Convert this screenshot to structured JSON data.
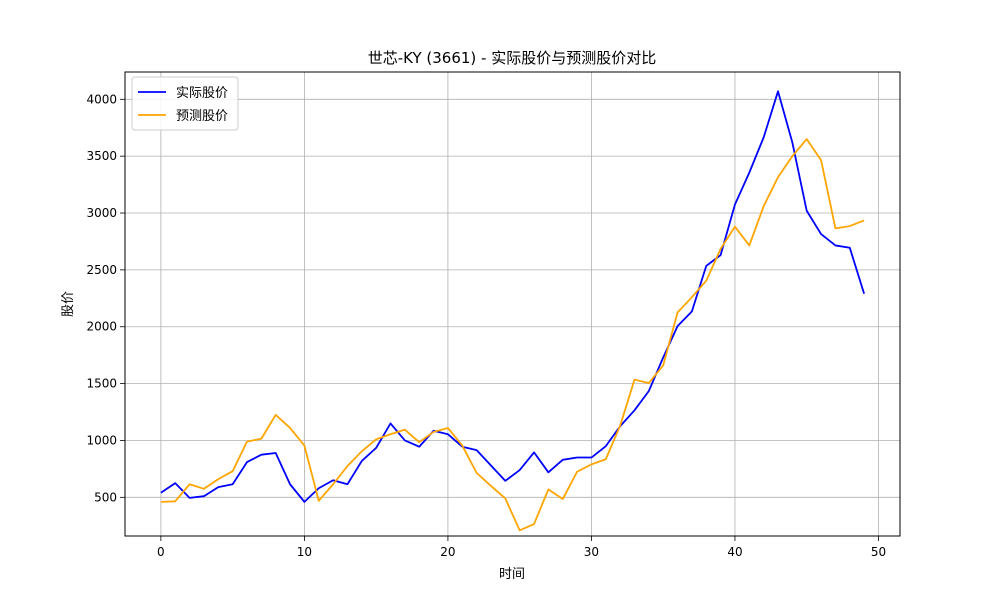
{
  "chart_data": {
    "type": "line",
    "title": "世芯-KY (3661) - 实际股价与预测股价对比",
    "xlabel": "时间",
    "ylabel": "股价",
    "xlim": [
      -2.5,
      51.5
    ],
    "ylim": [
      160,
      4240
    ],
    "xticks": [
      0,
      10,
      20,
      30,
      40,
      50
    ],
    "yticks": [
      500,
      1000,
      1500,
      2000,
      2500,
      3000,
      3500,
      4000
    ],
    "grid": true,
    "legend_position": "top-left",
    "x": [
      0,
      1,
      2,
      3,
      4,
      5,
      6,
      7,
      8,
      9,
      10,
      11,
      12,
      13,
      14,
      15,
      16,
      17,
      18,
      19,
      20,
      21,
      22,
      23,
      24,
      25,
      26,
      27,
      28,
      29,
      30,
      31,
      32,
      33,
      34,
      35,
      36,
      37,
      38,
      39,
      40,
      41,
      42,
      43,
      44,
      45,
      46,
      47,
      48,
      49
    ],
    "series": [
      {
        "name": "实际股价",
        "color": "#0000ff",
        "values": [
          540,
          625,
          495,
          510,
          590,
          615,
          810,
          875,
          890,
          615,
          460,
          580,
          650,
          615,
          820,
          935,
          1150,
          1000,
          945,
          1085,
          1055,
          945,
          915,
          780,
          645,
          740,
          895,
          720,
          830,
          850,
          850,
          950,
          1125,
          1265,
          1435,
          1730,
          2005,
          2135,
          2535,
          2630,
          3075,
          3355,
          3665,
          4070,
          3620,
          3020,
          2815,
          2715,
          2695,
          2290
        ]
      },
      {
        "name": "预测股价",
        "color": "#ffa500",
        "values": [
          460,
          465,
          615,
          575,
          660,
          730,
          990,
          1015,
          1225,
          1110,
          955,
          470,
          615,
          775,
          905,
          1010,
          1055,
          1095,
          985,
          1075,
          1110,
          955,
          715,
          600,
          490,
          210,
          265,
          570,
          485,
          725,
          790,
          835,
          1130,
          1535,
          1505,
          1660,
          2125,
          2260,
          2405,
          2685,
          2880,
          2715,
          3060,
          3315,
          3500,
          3650,
          3465,
          2865,
          2885,
          2935
        ]
      }
    ]
  }
}
